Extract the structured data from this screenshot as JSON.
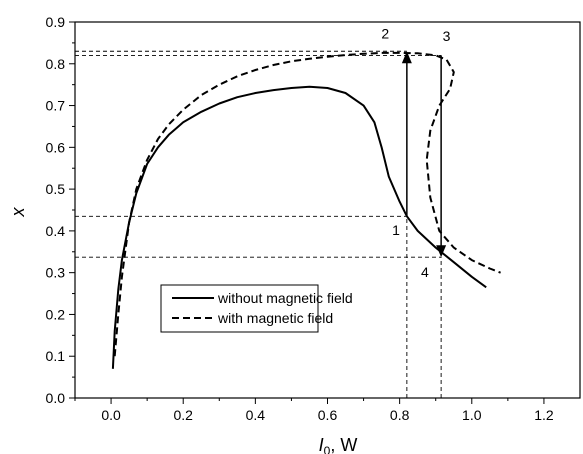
{
  "chart_data": {
    "type": "line",
    "xlabel": "I0, W",
    "xlabel_main": "I",
    "xlabel_sub": "0",
    "xlabel_rest": ", W",
    "ylabel": "x",
    "xlim": [
      -0.1,
      1.3
    ],
    "ylim": [
      0.0,
      0.9
    ],
    "xticks": [
      0.0,
      0.2,
      0.4,
      0.6,
      0.8,
      1.0,
      1.2
    ],
    "xtick_labels": [
      "0.0",
      "0.2",
      "0.4",
      "0.6",
      "0.8",
      "1.0",
      "1.2"
    ],
    "yticks": [
      0.0,
      0.1,
      0.2,
      0.3,
      0.4,
      0.5,
      0.6,
      0.7,
      0.8,
      0.9
    ],
    "ytick_labels": [
      "0.0",
      "0.1",
      "0.2",
      "0.3",
      "0.4",
      "0.5",
      "0.6",
      "0.7",
      "0.8",
      "0.9"
    ],
    "legend_position": "lower-left",
    "series": [
      {
        "name": "without magnetic field",
        "style": "solid",
        "color": "#000000",
        "x": [
          0.005,
          0.01,
          0.02,
          0.03,
          0.05,
          0.07,
          0.1,
          0.13,
          0.16,
          0.2,
          0.25,
          0.3,
          0.35,
          0.4,
          0.45,
          0.5,
          0.55,
          0.6,
          0.65,
          0.7,
          0.73,
          0.75,
          0.77,
          0.8,
          0.82,
          0.85,
          0.9,
          0.95,
          1.0,
          1.04
        ],
        "y": [
          0.07,
          0.16,
          0.26,
          0.33,
          0.42,
          0.49,
          0.56,
          0.6,
          0.63,
          0.66,
          0.685,
          0.705,
          0.72,
          0.73,
          0.737,
          0.742,
          0.745,
          0.742,
          0.73,
          0.7,
          0.66,
          0.6,
          0.53,
          0.47,
          0.435,
          0.4,
          0.36,
          0.325,
          0.29,
          0.265
        ]
      },
      {
        "name": "with magnetic field",
        "style": "dashed",
        "color": "#000000",
        "x": [
          0.01,
          0.02,
          0.03,
          0.05,
          0.07,
          0.1,
          0.13,
          0.16,
          0.2,
          0.25,
          0.3,
          0.35,
          0.4,
          0.45,
          0.5,
          0.55,
          0.6,
          0.65,
          0.7,
          0.75,
          0.8,
          0.85,
          0.9,
          0.93,
          0.95,
          0.94,
          0.91,
          0.885,
          0.875,
          0.885,
          0.91,
          0.95,
          1.0,
          1.05,
          1.08
        ],
        "y": [
          0.1,
          0.2,
          0.29,
          0.42,
          0.5,
          0.57,
          0.62,
          0.655,
          0.69,
          0.725,
          0.75,
          0.77,
          0.785,
          0.797,
          0.806,
          0.812,
          0.817,
          0.821,
          0.824,
          0.826,
          0.826,
          0.825,
          0.82,
          0.81,
          0.78,
          0.74,
          0.7,
          0.64,
          0.57,
          0.48,
          0.4,
          0.36,
          0.33,
          0.31,
          0.3
        ]
      }
    ],
    "guides": [
      {
        "axis": "h",
        "y": 0.83,
        "x_from": -0.1,
        "x_to": 0.82
      },
      {
        "axis": "h",
        "y": 0.82,
        "x_from": -0.1,
        "x_to": 0.915
      },
      {
        "axis": "h",
        "y": 0.435,
        "x_from": -0.1,
        "x_to": 0.82
      },
      {
        "axis": "h",
        "y": 0.337,
        "x_from": -0.1,
        "x_to": 0.915
      },
      {
        "axis": "v",
        "x": 0.82,
        "y_from": 0.0,
        "y_to": 0.435
      },
      {
        "axis": "v",
        "x": 0.915,
        "y_from": 0.0,
        "y_to": 0.337
      }
    ],
    "arrows": [
      {
        "x": 0.82,
        "y_from": 0.435,
        "y_to": 0.83
      },
      {
        "x": 0.915,
        "y_from": 0.82,
        "y_to": 0.337
      }
    ],
    "annotations": [
      {
        "text": "1",
        "x": 0.79,
        "y": 0.39
      },
      {
        "text": "2",
        "x": 0.76,
        "y": 0.86
      },
      {
        "text": "3",
        "x": 0.93,
        "y": 0.855
      },
      {
        "text": "4",
        "x": 0.87,
        "y": 0.29
      }
    ]
  }
}
